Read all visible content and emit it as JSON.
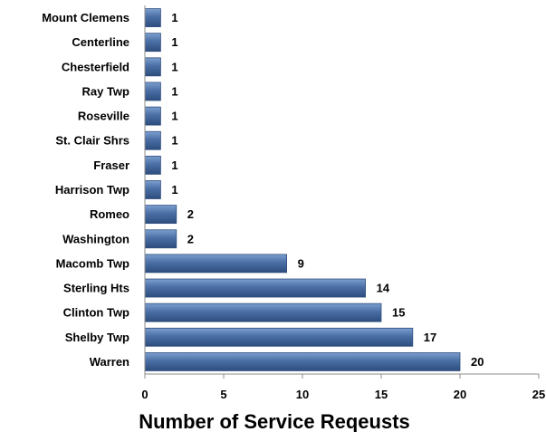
{
  "chart_data": {
    "type": "bar",
    "orientation": "horizontal",
    "categories": [
      "Mount Clemens",
      "Centerline",
      "Chesterfield",
      "Ray Twp",
      "Roseville",
      "St. Clair Shrs",
      "Fraser",
      "Harrison Twp",
      "Romeo",
      "Washington",
      "Macomb Twp",
      "Sterling Hts",
      "Clinton Twp",
      "Shelby Twp",
      "Warren"
    ],
    "values": [
      1,
      1,
      1,
      1,
      1,
      1,
      1,
      1,
      2,
      2,
      9,
      14,
      15,
      17,
      20
    ],
    "data_labels": [
      "1",
      "1",
      "1",
      "1",
      "1",
      "1",
      "1",
      "1",
      "2",
      "2",
      "9",
      "14",
      "15",
      "17",
      "20"
    ],
    "title": "",
    "xlabel": "Number of Service Reqeusts",
    "ylabel": "",
    "xlim": [
      0,
      25
    ],
    "xticks": [
      "0",
      "5",
      "10",
      "15",
      "20",
      "25"
    ],
    "grid": false,
    "legend": "none",
    "colors": {
      "bar_fill": "#4a6fa5",
      "bar_light": "#7d9fd0",
      "bar_dark": "#2e4d7e",
      "axis": "#8c8c8c"
    }
  }
}
